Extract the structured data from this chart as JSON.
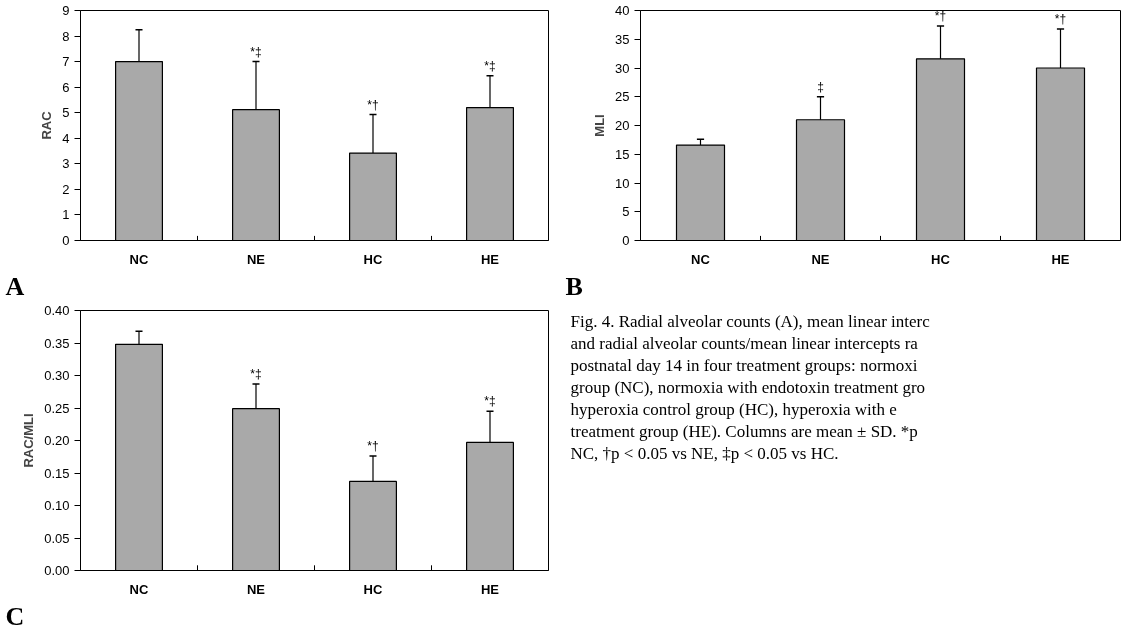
{
  "chart_data": [
    {
      "type": "bar",
      "ylabel": "RAC",
      "categories": [
        "NC",
        "NE",
        "HC",
        "HE"
      ],
      "color": "#a9a9a9",
      "values": [
        7.0,
        5.12,
        3.42,
        5.2
      ],
      "errors": [
        [
          7.0,
          8.25
        ],
        [
          5.12,
          7.0
        ],
        [
          3.42,
          4.93
        ],
        [
          5.2,
          6.45
        ]
      ],
      "ylim": [
        0,
        9
      ],
      "yticks": [
        0,
        1,
        2,
        3,
        4,
        5,
        6,
        7,
        8,
        9
      ],
      "grid": false,
      "annotations": [
        "A",
        {
          "text": "*‡",
          "x": "NE",
          "y": 7.0
        },
        {
          "text": "*†",
          "x": "HC",
          "y": 4.93
        },
        {
          "text": "*‡",
          "x": "HE",
          "y": 6.45
        }
      ]
    },
    {
      "type": "bar",
      "ylabel": "MLI",
      "categories": [
        "NC",
        "NE",
        "HC",
        "HE"
      ],
      "color": "#a9a9a9",
      "values": [
        16.6,
        21.0,
        31.6,
        30.0
      ],
      "errors": [
        [
          16.6,
          17.6
        ],
        [
          21.0,
          25.0
        ],
        [
          31.6,
          37.3
        ],
        [
          30.0,
          36.8
        ]
      ],
      "ylim": [
        0,
        40
      ],
      "yticks": [
        0,
        5,
        10,
        15,
        20,
        25,
        30,
        35,
        40
      ],
      "grid": false,
      "annotations": [
        "B",
        {
          "text": "‡",
          "x": "NE",
          "y": 25.0
        },
        {
          "text": "*†",
          "x": "HC",
          "y": 37.3
        },
        {
          "text": "*†",
          "x": "HE",
          "y": 36.8
        }
      ]
    },
    {
      "type": "bar",
      "ylabel": "RAC/MLI",
      "categories": [
        "NC",
        "NE",
        "HC",
        "HE"
      ],
      "color": "#a9a9a9",
      "values": [
        0.348,
        0.249,
        0.137,
        0.197
      ],
      "errors": [
        [
          0.348,
          0.368
        ],
        [
          0.249,
          0.287
        ],
        [
          0.137,
          0.176
        ],
        [
          0.197,
          0.245
        ]
      ],
      "ylim": [
        0,
        0.4
      ],
      "yticks": [
        {
          "value": 0,
          "label": "0.00"
        },
        {
          "value": 0.05,
          "label": "0.05"
        },
        {
          "value": 0.1,
          "label": "0.10"
        },
        {
          "value": 0.15,
          "label": "0.15"
        },
        {
          "value": 0.2,
          "label": "0.20"
        },
        {
          "value": 0.25,
          "label": "0.25"
        },
        {
          "value": 0.3,
          "label": "0.30"
        },
        {
          "value": 0.35,
          "label": "0.35"
        },
        {
          "value": 0.4,
          "label": "0.40"
        }
      ],
      "grid": false,
      "annotations": [
        "C",
        {
          "text": "*‡",
          "x": "NE",
          "y": 0.287
        },
        {
          "text": "*†",
          "x": "HC",
          "y": 0.176
        },
        {
          "text": "*‡",
          "x": "HE",
          "y": 0.245
        }
      ]
    },
    {
      "type": "other",
      "annotations": [
        "Fig. 4. Radial alveolar counts (A), mean linear interc",
        "and radial alveolar counts/mean linear intercepts ra",
        "postnatal day 14 in four treatment groups: normoxi",
        "group (NC), normoxia with endotoxin treatment gro",
        "hyperoxia control group (HC), hyperoxia with e",
        "treatment group (HE). Columns are mean ± SD. *p",
        "NC, †p < 0.05 vs NE, ‡p < 0.05 vs HC."
      ]
    }
  ]
}
